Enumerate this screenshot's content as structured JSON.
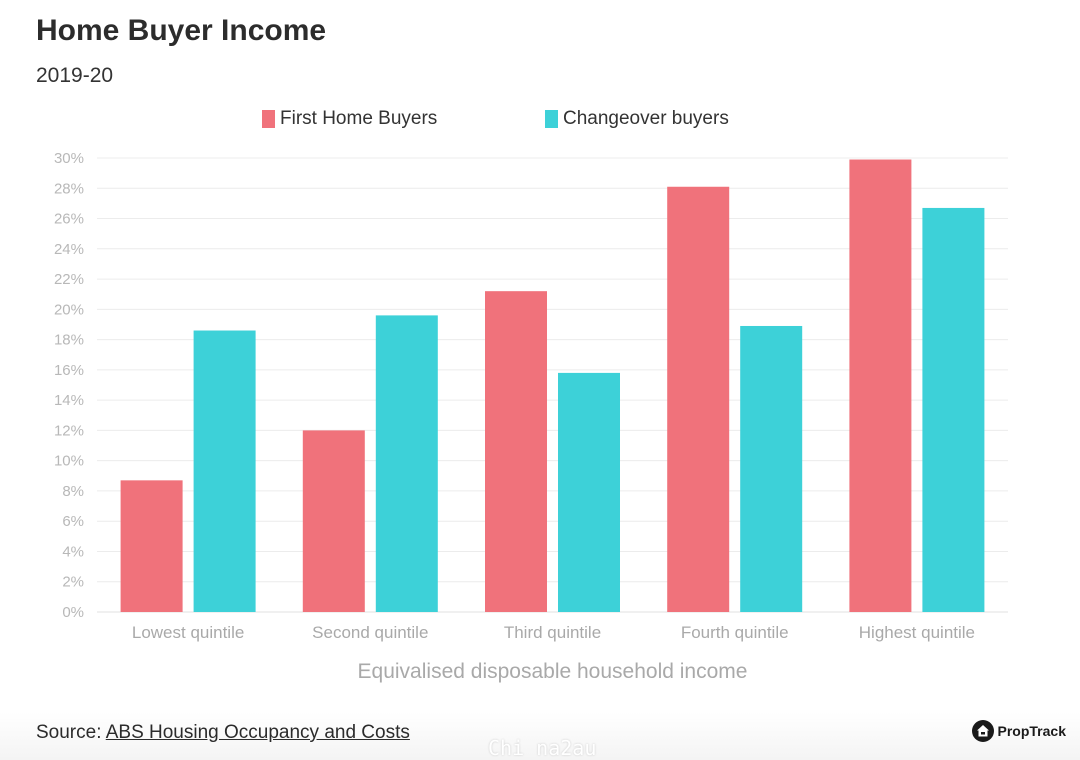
{
  "header": {
    "title": "Home Buyer Income",
    "subtitle": "2019-20"
  },
  "colors": {
    "first_home_buyers": "#f0727b",
    "changeover_buyers": "#3dd1d8",
    "grid": "#ececec"
  },
  "chart_data": {
    "type": "bar",
    "categories": [
      "Lowest quintile",
      "Second quintile",
      "Third quintile",
      "Fourth quintile",
      "Highest quintile"
    ],
    "series": [
      {
        "name": "First Home Buyers",
        "values": [
          8.7,
          12.0,
          21.2,
          28.1,
          29.9
        ]
      },
      {
        "name": "Changeover buyers",
        "values": [
          18.6,
          19.6,
          15.8,
          18.9,
          26.7
        ]
      }
    ],
    "xlabel": "Equivalised disposable household income",
    "ylabel": "",
    "ylim": [
      0,
      30
    ],
    "yticks": [
      "0%",
      "2%",
      "4%",
      "6%",
      "8%",
      "10%",
      "12%",
      "14%",
      "16%",
      "18%",
      "20%",
      "22%",
      "24%",
      "26%",
      "28%",
      "30%"
    ],
    "grid": true,
    "legend_position": "top"
  },
  "footer": {
    "source_prefix": "Source:",
    "source_link": "ABS Housing Occupancy and Costs",
    "brand": "PropTrack",
    "watermark": "Chi na2au"
  }
}
